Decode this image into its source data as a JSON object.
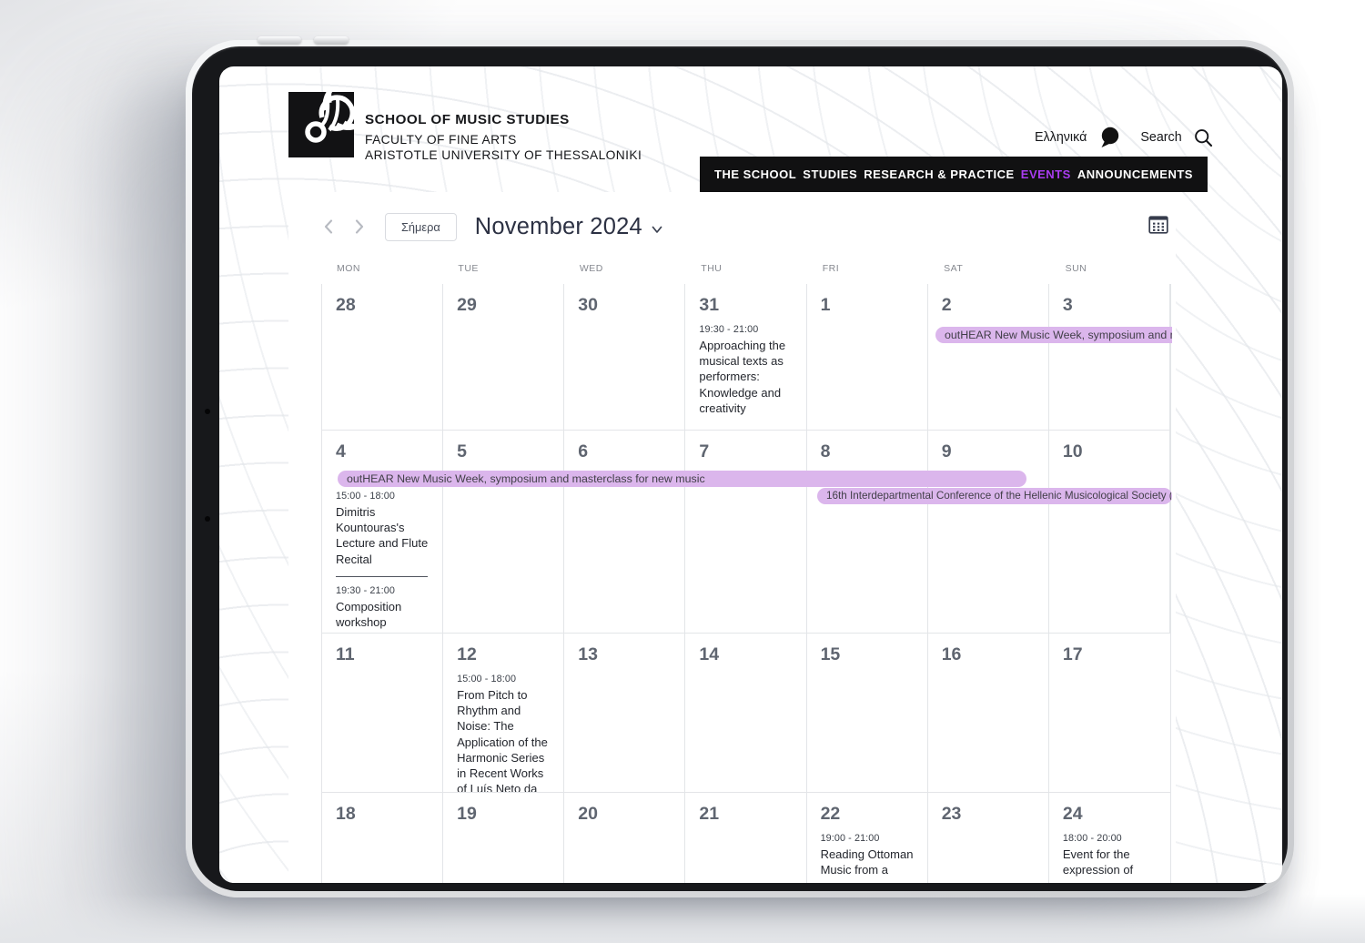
{
  "site": {
    "title_line1": "SCHOOL OF MUSIC STUDIES",
    "title_line2": "FACULTY OF FINE ARTS",
    "title_line3": "ARISTOTLE UNIVERSITY OF THESSALONIKI",
    "language_label": "Ελληνικά",
    "search_label": "Search"
  },
  "nav": {
    "items": [
      {
        "label": "THE SCHOOL",
        "active": false
      },
      {
        "label": "STUDIES",
        "active": false
      },
      {
        "label": "RESEARCH & PRACTICE",
        "active": false
      },
      {
        "label": "EVENTS",
        "active": true
      },
      {
        "label": "ANNOUNCEMENTS",
        "active": false
      }
    ]
  },
  "colors": {
    "accent": "#a93cf0",
    "nav_bg": "#111112",
    "event_bar_bg": "#dbb6ec"
  },
  "calendar": {
    "toolbar": {
      "today_label": "Σήμερα",
      "month_label": "November 2024"
    },
    "icons": [
      "chevron-left-icon",
      "chevron-right-icon",
      "month-view-icon",
      "speech-bubble-icon",
      "search-icon"
    ],
    "day_headers": [
      "MON",
      "TUE",
      "WED",
      "THU",
      "FRI",
      "SAT",
      "SUN"
    ],
    "weeks": [
      {
        "days": [
          {
            "num": "28",
            "events": []
          },
          {
            "num": "29",
            "events": []
          },
          {
            "num": "30",
            "events": []
          },
          {
            "num": "31",
            "events": [
              {
                "time": "19:30 - 21:00",
                "title": "Approaching the musical texts as performers: Knowledge and creativity"
              }
            ]
          },
          {
            "num": "1",
            "events": []
          },
          {
            "num": "2",
            "events": []
          },
          {
            "num": "3",
            "events": []
          }
        ]
      },
      {
        "days": [
          {
            "num": "4",
            "events": [
              {
                "time": "15:00 - 18:00",
                "title": "Dimitris Kountouras's Lecture and Flute Recital"
              },
              {
                "time": "19:30 - 21:00",
                "title": "Composition workshop"
              }
            ]
          },
          {
            "num": "5",
            "events": []
          },
          {
            "num": "6",
            "events": []
          },
          {
            "num": "7",
            "events": []
          },
          {
            "num": "8",
            "events": []
          },
          {
            "num": "9",
            "events": []
          },
          {
            "num": "10",
            "events": []
          }
        ]
      },
      {
        "days": [
          {
            "num": "11",
            "events": []
          },
          {
            "num": "12",
            "events": [
              {
                "time": "15:00 - 18:00",
                "title": "From Pitch to Rhythm and Noise: The Application of the Harmonic Series in Recent Works of Luís Neto da Costa"
              }
            ]
          },
          {
            "num": "13",
            "events": []
          },
          {
            "num": "14",
            "events": []
          },
          {
            "num": "15",
            "events": []
          },
          {
            "num": "16",
            "events": []
          },
          {
            "num": "17",
            "events": []
          }
        ]
      },
      {
        "days": [
          {
            "num": "18",
            "events": []
          },
          {
            "num": "19",
            "events": []
          },
          {
            "num": "20",
            "events": []
          },
          {
            "num": "21",
            "events": []
          },
          {
            "num": "22",
            "events": [
              {
                "time": "19:00 - 21:00",
                "title": "Reading Ottoman Music from a"
              }
            ]
          },
          {
            "num": "23",
            "events": []
          },
          {
            "num": "24",
            "events": [
              {
                "time": "18:00 - 20:00",
                "title": "Event for the expression of"
              }
            ]
          }
        ]
      }
    ],
    "bars": [
      {
        "text": "outHEAR New Music Week, symposium and m…"
      },
      {
        "text": "outHEAR New Music Week, symposium and masterclass for new music"
      },
      {
        "text": "16th Interdepartmental Conference of the Hellenic Musicological Society (…"
      }
    ]
  }
}
